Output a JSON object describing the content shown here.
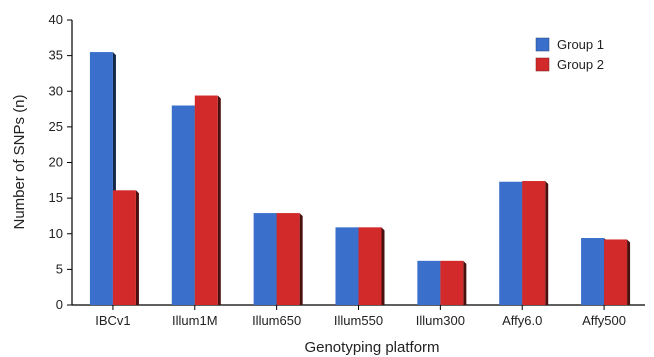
{
  "chart_data": {
    "type": "bar",
    "categories": [
      "IBCv1",
      "Illum1M",
      "Illum650",
      "Illum550",
      "Illum300",
      "Affy6.0",
      "Affy500"
    ],
    "series": [
      {
        "name": "Group 1",
        "values": [
          35.5,
          28.0,
          12.9,
          10.9,
          6.2,
          17.3,
          9.4
        ],
        "color": "#3a6fcc"
      },
      {
        "name": "Group 2",
        "values": [
          16.1,
          29.4,
          12.9,
          10.9,
          6.2,
          17.4,
          9.2
        ],
        "color": "#d22a2a"
      }
    ],
    "title": "",
    "xlabel": "Genotyping platform",
    "ylabel": "Number of SNPs (n)",
    "ylim": [
      0,
      40
    ],
    "yticks": [
      0,
      5,
      10,
      15,
      20,
      25,
      30,
      35,
      40
    ],
    "grid": false,
    "legend_position": "top-right"
  }
}
